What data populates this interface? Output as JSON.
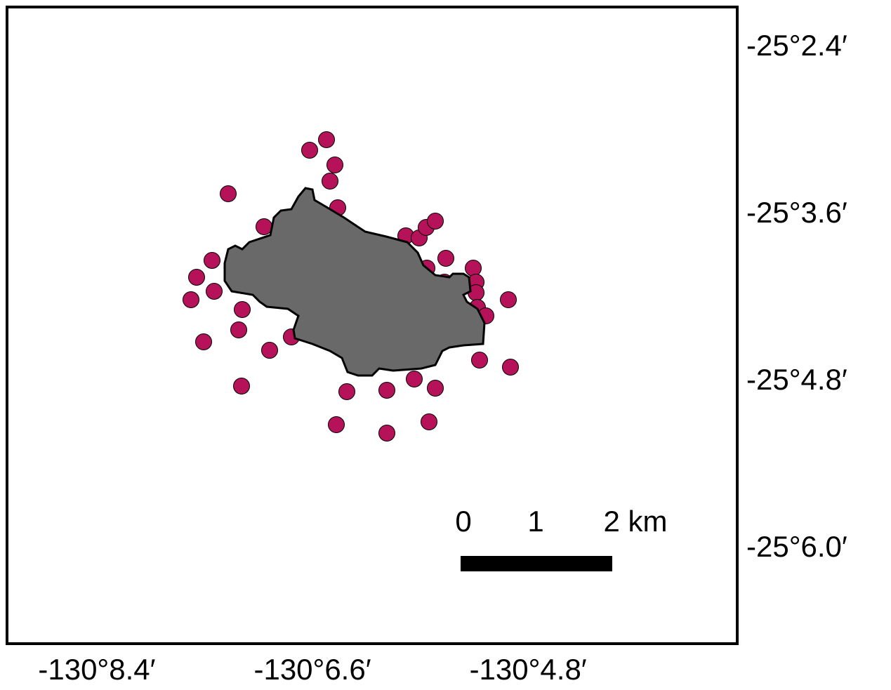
{
  "map": {
    "xlim": [
      -130.1525,
      -130.0509
    ],
    "ylim": [
      -25.11135,
      -25.03512
    ],
    "xticks": [
      {
        "value": -130.14,
        "label": "-130°8.4′"
      },
      {
        "value": -130.11,
        "label": "-130°6.6′"
      },
      {
        "value": -130.08,
        "label": "-130°4.8′"
      }
    ],
    "yticks": [
      {
        "value": -25.04,
        "label": "-25°2.4′"
      },
      {
        "value": -25.06,
        "label": "-25°3.6′"
      },
      {
        "value": -25.08,
        "label": "-25°4.8′"
      },
      {
        "value": -25.1,
        "label": "-25°6.0′"
      }
    ],
    "scale_bar": {
      "labels": [
        "0",
        "1",
        "2 km"
      ]
    }
  }
}
